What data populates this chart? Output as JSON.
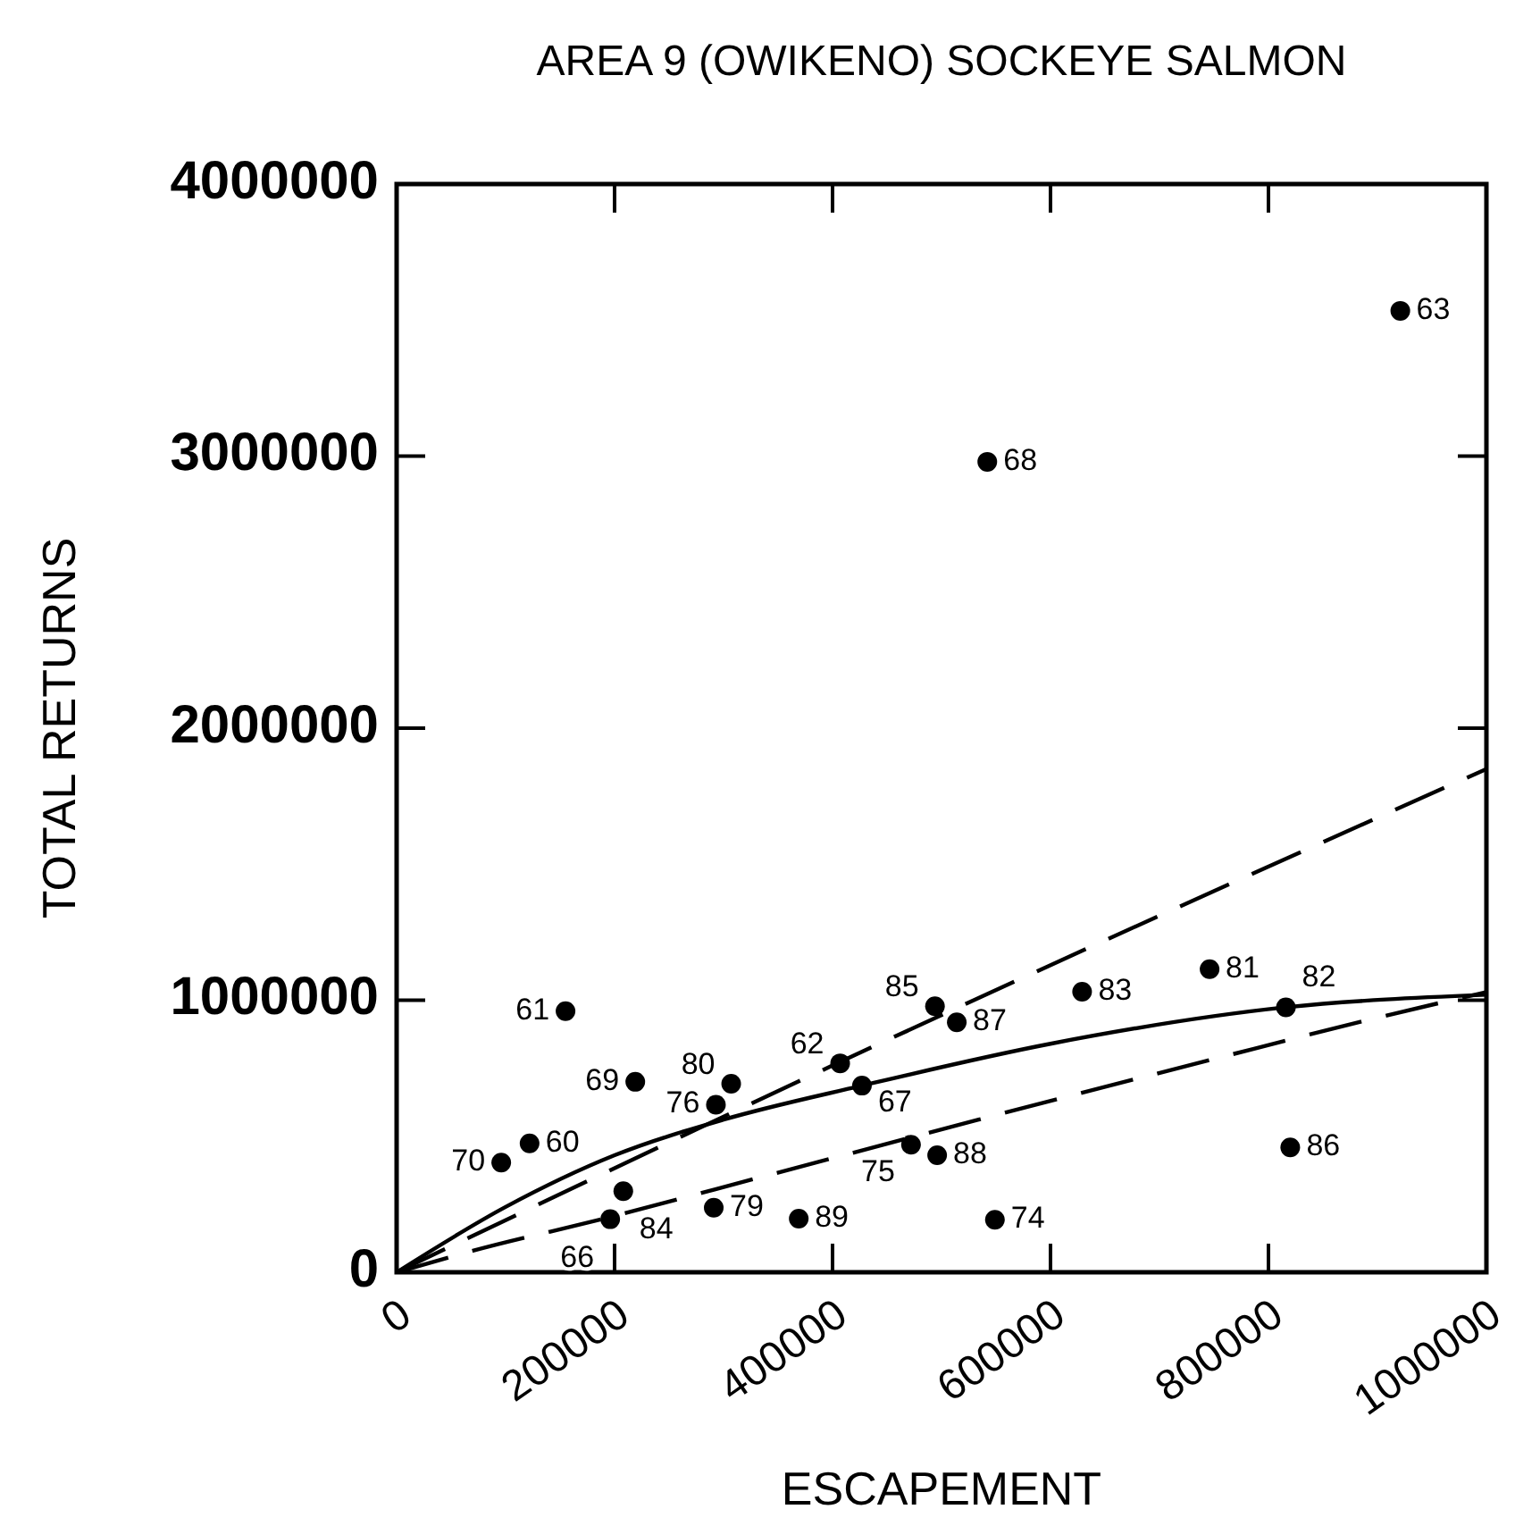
{
  "chart_data": {
    "type": "scatter",
    "title": "AREA 9 (OWIKENO) SOCKEYE SALMON",
    "xlabel": "ESCAPEMENT",
    "ylabel": "TOTAL RETURNS",
    "xlim": [
      0,
      1000000
    ],
    "ylim": [
      0,
      4000000
    ],
    "xticks": [
      0,
      200000,
      400000,
      600000,
      800000,
      1000000
    ],
    "yticks": [
      0,
      1000000,
      2000000,
      3000000,
      4000000
    ],
    "grid": false,
    "series": [
      {
        "color": "#000000",
        "marker": "circle",
        "x": [
          155000,
          219000,
          307000,
          293000,
          122000,
          96000,
          208000,
          196000,
          291000,
          369000,
          407000,
          427000,
          472000,
          496000,
          494000,
          514000,
          629000,
          746000,
          816000,
          820000,
          549000,
          921000,
          542000
        ],
        "values": [
          960000,
          700000,
          693000,
          616000,
          474000,
          403000,
          298000,
          195000,
          237000,
          197000,
          768000,
          686000,
          469000,
          430000,
          978000,
          919000,
          1031000,
          1114000,
          974000,
          459000,
          193000,
          3534000,
          2979000
        ]
      },
      {
        "type": "line",
        "color": "#000000",
        "line_style": "solid",
        "x": [
          0,
          100000,
          200000,
          300000,
          427000,
          600000,
          816000,
          1000000
        ],
        "values": [
          0,
          240000,
          430000,
          561000,
          686000,
          840000,
          974000,
          1020000
        ]
      },
      {
        "type": "line",
        "color": "#000000",
        "line_style": "dashed",
        "x": [
          0,
          400000,
          1000000
        ],
        "values": [
          0,
          760000,
          1850000
        ]
      },
      {
        "type": "line",
        "color": "#000000",
        "line_style": "dashed",
        "x": [
          0,
          70000,
          193000,
          344000,
          534000,
          751000,
          887000,
          1000000
        ],
        "values": [
          0,
          79000,
          200000,
          360000,
          561000,
          785000,
          923000,
          1030000
        ]
      }
    ],
    "annotations": [
      {
        "text": "61",
        "x": 155000,
        "y": 960000
      },
      {
        "text": "69",
        "x": 219000,
        "y": 700000
      },
      {
        "text": "80",
        "x": 307000,
        "y": 693000
      },
      {
        "text": "76",
        "x": 293000,
        "y": 616000
      },
      {
        "text": "60",
        "x": 122000,
        "y": 474000
      },
      {
        "text": "70",
        "x": 96000,
        "y": 403000
      },
      {
        "text": "84",
        "x": 208000,
        "y": 298000
      },
      {
        "text": "66",
        "x": 196000,
        "y": 195000
      },
      {
        "text": "79",
        "x": 291000,
        "y": 237000
      },
      {
        "text": "89",
        "x": 369000,
        "y": 197000
      },
      {
        "text": "62",
        "x": 407000,
        "y": 768000
      },
      {
        "text": "67",
        "x": 427000,
        "y": 686000
      },
      {
        "text": "75",
        "x": 472000,
        "y": 469000
      },
      {
        "text": "88",
        "x": 496000,
        "y": 430000
      },
      {
        "text": "85",
        "x": 494000,
        "y": 978000
      },
      {
        "text": "87",
        "x": 514000,
        "y": 919000
      },
      {
        "text": "83",
        "x": 629000,
        "y": 1031000
      },
      {
        "text": "81",
        "x": 746000,
        "y": 1114000
      },
      {
        "text": "82",
        "x": 816000,
        "y": 974000
      },
      {
        "text": "86",
        "x": 820000,
        "y": 459000
      },
      {
        "text": "74",
        "x": 549000,
        "y": 193000
      },
      {
        "text": "63",
        "x": 921000,
        "y": 3534000
      },
      {
        "text": "68",
        "x": 542000,
        "y": 2979000
      }
    ]
  }
}
